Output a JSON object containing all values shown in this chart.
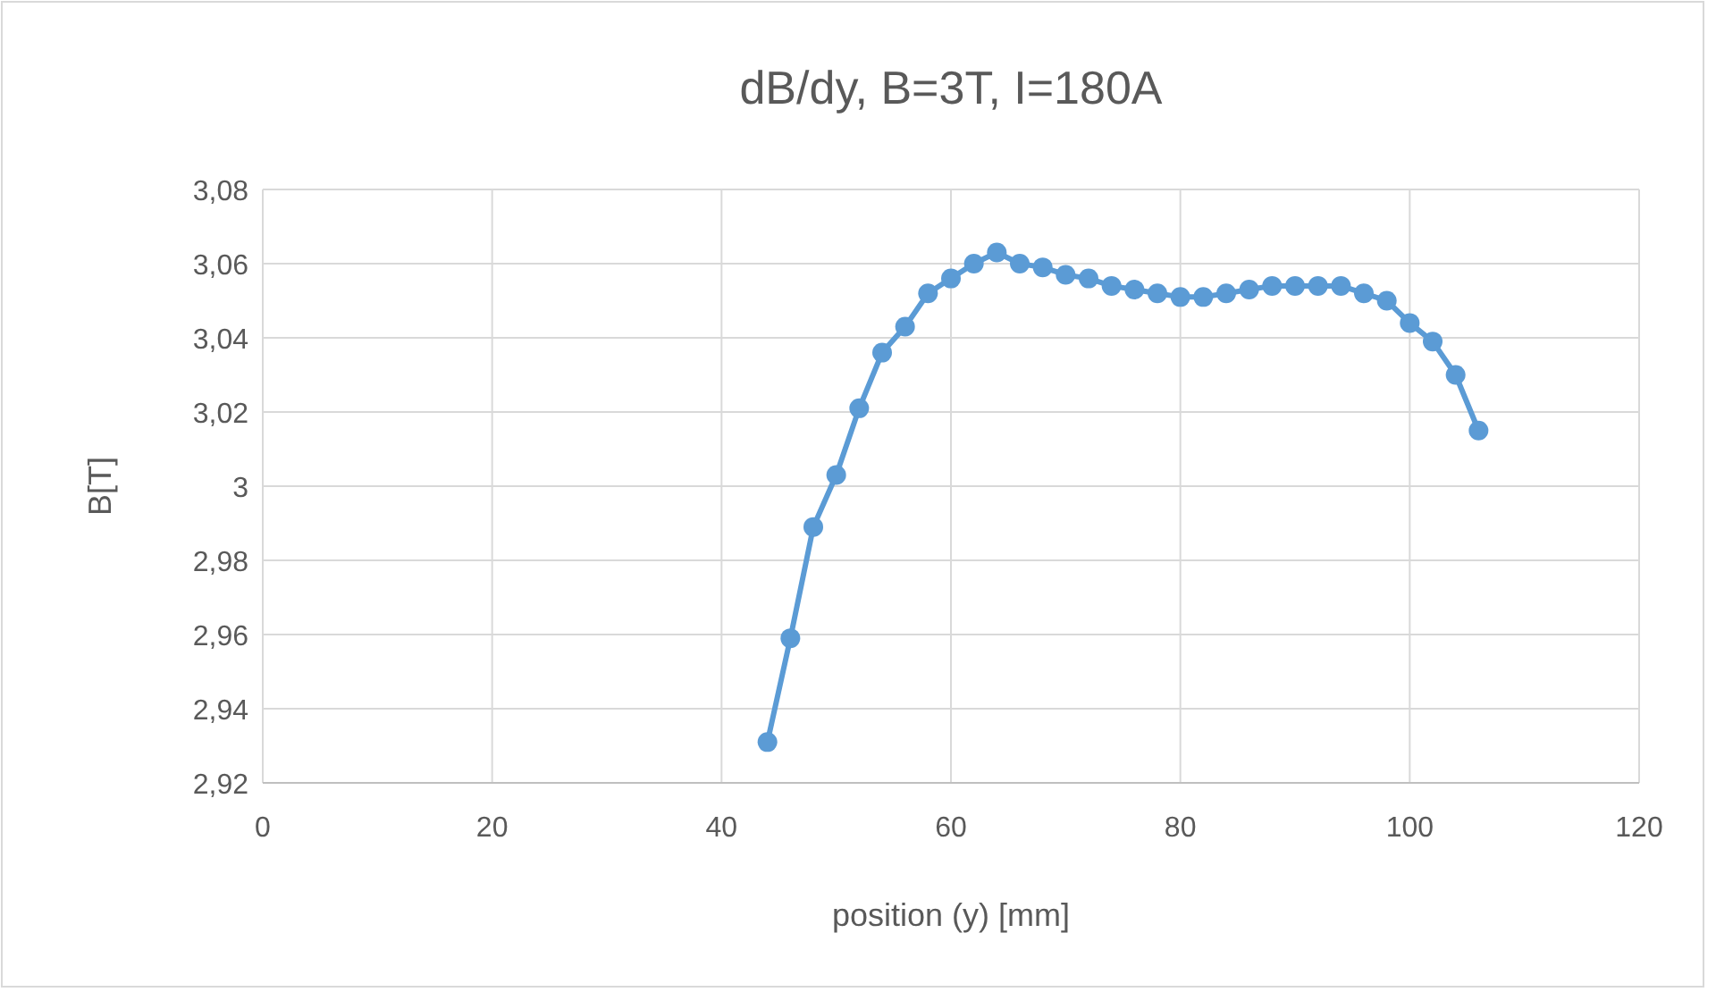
{
  "chart_data": {
    "type": "line",
    "title": "dB/dy, B=3T, I=180A",
    "xlabel": "position (y) [mm]",
    "ylabel": "B[T]",
    "x": [
      44,
      46,
      48,
      50,
      52,
      54,
      56,
      58,
      60,
      62,
      64,
      66,
      68,
      70,
      72,
      74,
      76,
      78,
      80,
      82,
      84,
      86,
      88,
      90,
      92,
      94,
      96,
      98,
      100,
      102,
      104,
      106
    ],
    "series": [
      {
        "color": "#5b9bd5",
        "values": [
          2.931,
          2.959,
          2.989,
          3.003,
          3.021,
          3.036,
          3.043,
          3.052,
          3.056,
          3.06,
          3.063,
          3.06,
          3.059,
          3.057,
          3.056,
          3.054,
          3.053,
          3.052,
          3.051,
          3.051,
          3.052,
          3.053,
          3.054,
          3.054,
          3.054,
          3.054,
          3.052,
          3.05,
          3.044,
          3.039,
          3.03,
          3.015
        ]
      }
    ],
    "xlim": [
      0,
      120
    ],
    "xticks": [
      0,
      20,
      40,
      60,
      80,
      100,
      120
    ],
    "ylim": [
      2.92,
      3.08
    ],
    "yticks": [
      {
        "value": 2.92,
        "label": "2,92"
      },
      {
        "value": 2.94,
        "label": "2,94"
      },
      {
        "value": 2.96,
        "label": "2,96"
      },
      {
        "value": 2.98,
        "label": "2,98"
      },
      {
        "value": 3,
        "label": "3"
      },
      {
        "value": 3.02,
        "label": "3,02"
      },
      {
        "value": 3.04,
        "label": "3,04"
      },
      {
        "value": 3.06,
        "label": "3,06"
      },
      {
        "value": 3.08,
        "label": "3,08"
      }
    ],
    "grid": true,
    "marker": "circle",
    "line_style": "solid"
  }
}
